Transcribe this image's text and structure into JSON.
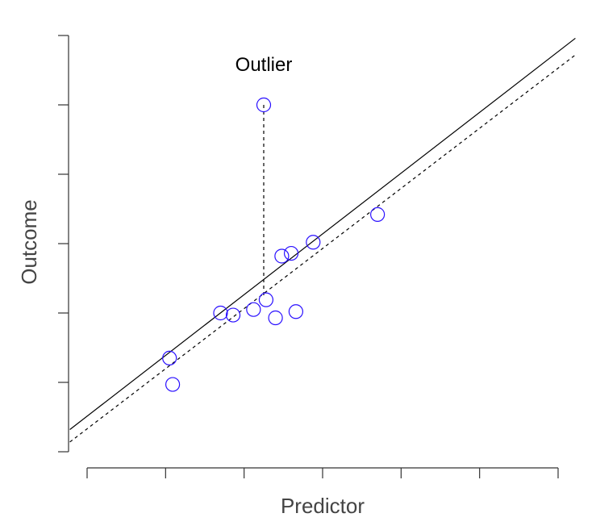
{
  "chart_data": {
    "type": "scatter",
    "title": "",
    "xlabel": "Predictor",
    "ylabel": "Outcome",
    "xlim": [
      0,
      6
    ],
    "ylim": [
      0,
      6
    ],
    "x_ticks": [
      0,
      1,
      2,
      3,
      4,
      5,
      6
    ],
    "y_ticks": [
      0,
      1,
      2,
      3,
      4,
      5,
      6
    ],
    "x_tick_labels_shown": false,
    "y_tick_labels_shown": false,
    "grid": false,
    "point_color": "#2a10ff",
    "points": [
      {
        "x": 1.05,
        "y": 1.35
      },
      {
        "x": 1.09,
        "y": 0.97
      },
      {
        "x": 1.7,
        "y": 2.0
      },
      {
        "x": 1.86,
        "y": 1.97
      },
      {
        "x": 2.12,
        "y": 2.05
      },
      {
        "x": 2.25,
        "y": 5.0
      },
      {
        "x": 2.28,
        "y": 2.19
      },
      {
        "x": 2.4,
        "y": 1.93
      },
      {
        "x": 2.48,
        "y": 2.82
      },
      {
        "x": 2.6,
        "y": 2.86
      },
      {
        "x": 2.66,
        "y": 2.02
      },
      {
        "x": 2.88,
        "y": 3.02
      },
      {
        "x": 3.7,
        "y": 3.42
      }
    ],
    "lines": [
      {
        "style": "solid",
        "x": [
          -0.22,
          6.22
        ],
        "y": [
          0.32,
          5.96
        ]
      },
      {
        "style": "dashed",
        "x": [
          -0.22,
          6.22
        ],
        "y": [
          0.14,
          5.72
        ]
      }
    ],
    "outlier_residual": {
      "x": 2.25,
      "y_from": 5.0,
      "y_to": 2.22
    },
    "annotation": {
      "text": "Outlier",
      "x": 2.25,
      "y": 5.58
    }
  }
}
